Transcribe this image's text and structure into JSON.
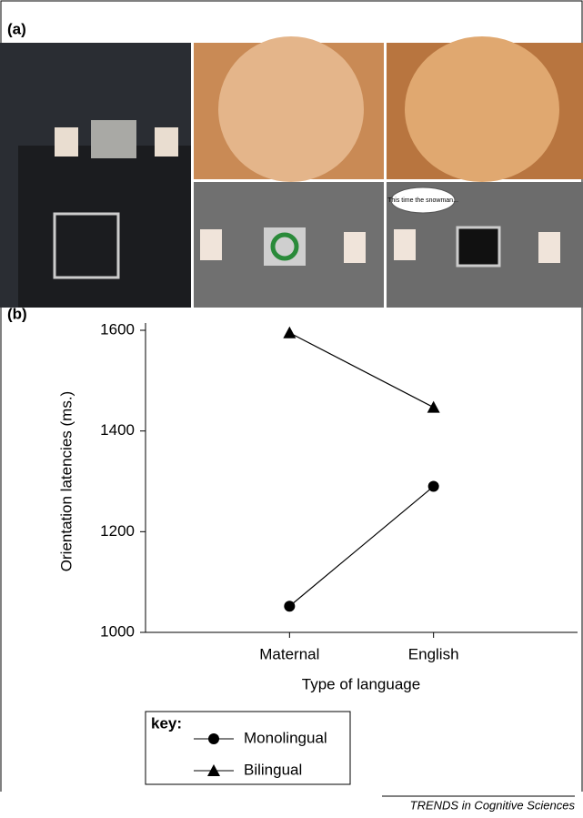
{
  "panel_labels": [
    "(a)",
    "(b)"
  ],
  "photo_caption": "This time the snowman...",
  "chart_data": {
    "type": "line",
    "ylabel": "Orientation latencies (ms.)",
    "xlabel": "Type of language",
    "categories": [
      "Maternal",
      "English"
    ],
    "series": [
      {
        "name": "Monolingual",
        "color": "#000000",
        "marker": "circle",
        "values": [
          1052,
          1290
        ]
      },
      {
        "name": "Bilingual",
        "color": "#000000",
        "marker": "triangle",
        "values": [
          1595,
          1447
        ]
      }
    ],
    "ylim": [
      1000,
      1600
    ],
    "yticks": [
      1000,
      1200,
      1400,
      1600
    ],
    "legend_title": "key:",
    "legend_position": "bottom-left"
  },
  "footer": "TRENDS in Cognitive Sciences"
}
